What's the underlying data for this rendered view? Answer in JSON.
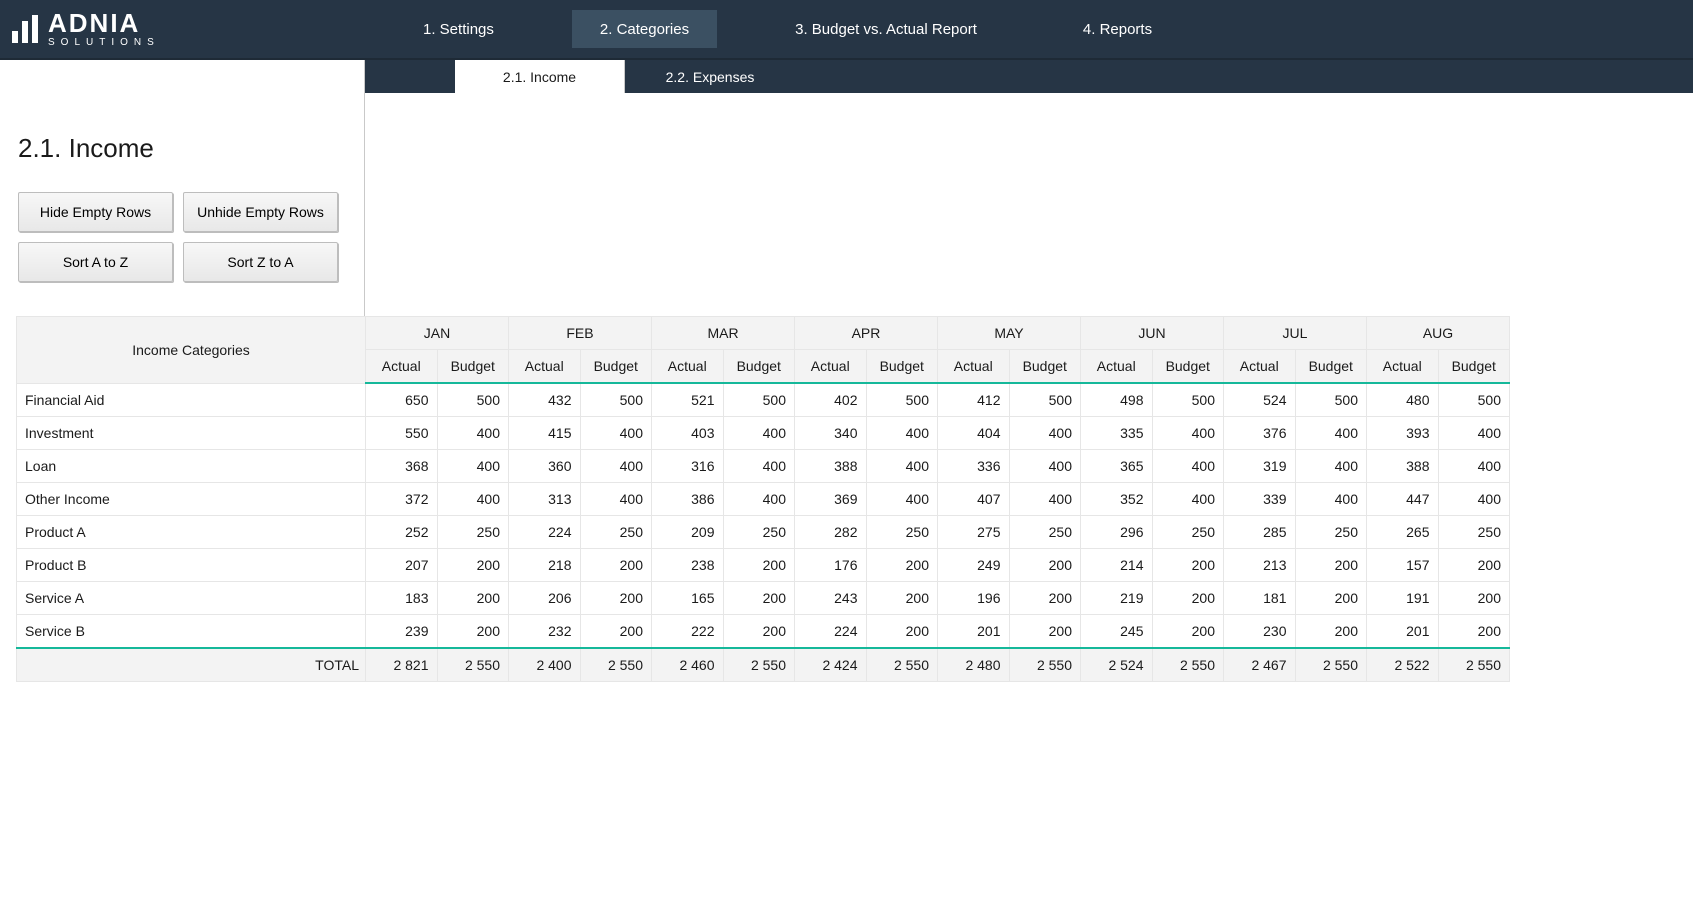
{
  "brand": {
    "title": "ADNIA",
    "subtitle": "SOLUTIONS"
  },
  "nav": {
    "tabs": [
      {
        "label": "1. Settings",
        "active": false
      },
      {
        "label": "2. Categories",
        "active": true
      },
      {
        "label": "3. Budget vs. Actual Report",
        "active": false
      },
      {
        "label": "4. Reports",
        "active": false
      }
    ],
    "subtabs": [
      {
        "label": "2.1. Income",
        "active": true
      },
      {
        "label": "2.2. Expenses",
        "active": false
      }
    ]
  },
  "page": {
    "title": "2.1. Income"
  },
  "buttons": {
    "hide_empty": "Hide Empty Rows",
    "unhide_empty": "Unhide Empty Rows",
    "sort_az": "Sort A to Z",
    "sort_za": "Sort Z to A"
  },
  "table": {
    "category_header": "Income Categories",
    "sub_headers": [
      "Actual",
      "Budget"
    ],
    "total_label": "TOTAL",
    "months": [
      "JAN",
      "FEB",
      "MAR",
      "APR",
      "MAY",
      "JUN",
      "JUL",
      "AUG"
    ],
    "rows": [
      {
        "name": "Financial Aid",
        "vals": [
          [
            650,
            500
          ],
          [
            432,
            500
          ],
          [
            521,
            500
          ],
          [
            402,
            500
          ],
          [
            412,
            500
          ],
          [
            498,
            500
          ],
          [
            524,
            500
          ],
          [
            480,
            500
          ]
        ]
      },
      {
        "name": "Investment",
        "vals": [
          [
            550,
            400
          ],
          [
            415,
            400
          ],
          [
            403,
            400
          ],
          [
            340,
            400
          ],
          [
            404,
            400
          ],
          [
            335,
            400
          ],
          [
            376,
            400
          ],
          [
            393,
            400
          ]
        ]
      },
      {
        "name": "Loan",
        "vals": [
          [
            368,
            400
          ],
          [
            360,
            400
          ],
          [
            316,
            400
          ],
          [
            388,
            400
          ],
          [
            336,
            400
          ],
          [
            365,
            400
          ],
          [
            319,
            400
          ],
          [
            388,
            400
          ]
        ]
      },
      {
        "name": "Other Income",
        "vals": [
          [
            372,
            400
          ],
          [
            313,
            400
          ],
          [
            386,
            400
          ],
          [
            369,
            400
          ],
          [
            407,
            400
          ],
          [
            352,
            400
          ],
          [
            339,
            400
          ],
          [
            447,
            400
          ]
        ]
      },
      {
        "name": "Product A",
        "vals": [
          [
            252,
            250
          ],
          [
            224,
            250
          ],
          [
            209,
            250
          ],
          [
            282,
            250
          ],
          [
            275,
            250
          ],
          [
            296,
            250
          ],
          [
            285,
            250
          ],
          [
            265,
            250
          ]
        ]
      },
      {
        "name": "Product B",
        "vals": [
          [
            207,
            200
          ],
          [
            218,
            200
          ],
          [
            238,
            200
          ],
          [
            176,
            200
          ],
          [
            249,
            200
          ],
          [
            214,
            200
          ],
          [
            213,
            200
          ],
          [
            157,
            200
          ]
        ]
      },
      {
        "name": "Service A",
        "vals": [
          [
            183,
            200
          ],
          [
            206,
            200
          ],
          [
            165,
            200
          ],
          [
            243,
            200
          ],
          [
            196,
            200
          ],
          [
            219,
            200
          ],
          [
            181,
            200
          ],
          [
            191,
            200
          ]
        ]
      },
      {
        "name": "Service B",
        "vals": [
          [
            239,
            200
          ],
          [
            232,
            200
          ],
          [
            222,
            200
          ],
          [
            224,
            200
          ],
          [
            201,
            200
          ],
          [
            245,
            200
          ],
          [
            230,
            200
          ],
          [
            201,
            200
          ]
        ]
      }
    ],
    "totals": [
      [
        "2 821",
        "2 550"
      ],
      [
        "2 400",
        "2 550"
      ],
      [
        "2 460",
        "2 550"
      ],
      [
        "2 424",
        "2 550"
      ],
      [
        "2 480",
        "2 550"
      ],
      [
        "2 524",
        "2 550"
      ],
      [
        "2 467",
        "2 550"
      ],
      [
        "2 522",
        "2 550"
      ]
    ]
  },
  "style": {
    "topbar_bg": "#263545",
    "topbar_active_bg": "#3b5062",
    "accent": "#15b89a",
    "header_bg": "#f3f3f3",
    "border": "#e6e6e6"
  }
}
